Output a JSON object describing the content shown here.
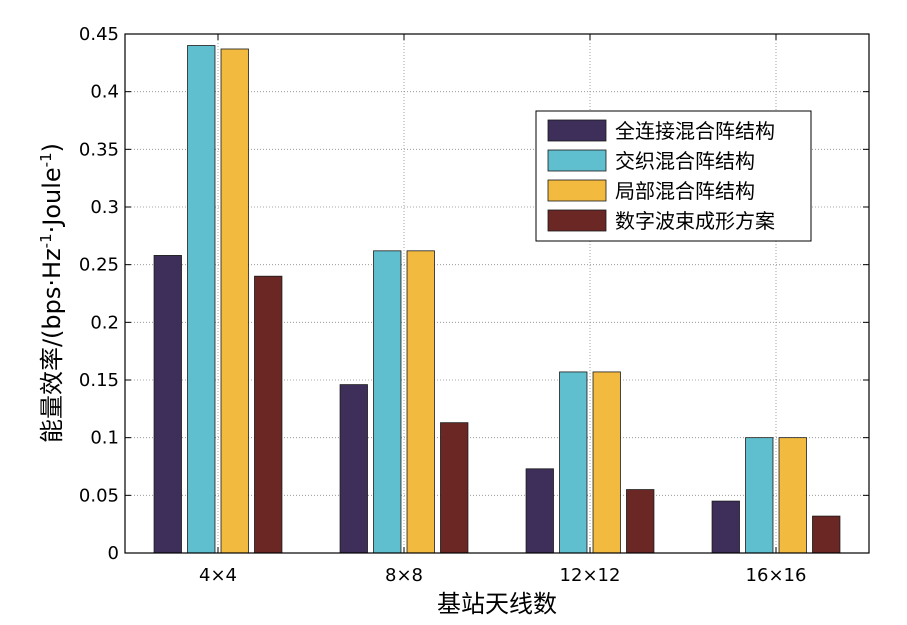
{
  "chart_data": {
    "type": "bar",
    "categories": [
      "4×4",
      "8×8",
      "12×12",
      "16×16"
    ],
    "series": [
      {
        "name": "全连接混合阵结构",
        "color": "#3d2f5a",
        "values": [
          0.258,
          0.146,
          0.073,
          0.045
        ]
      },
      {
        "name": "交织混合阵结构",
        "color": "#5fbfcf",
        "values": [
          0.44,
          0.262,
          0.157,
          0.1
        ]
      },
      {
        "name": "局部混合阵结构",
        "color": "#f2bb3f",
        "values": [
          0.437,
          0.262,
          0.157,
          0.1
        ]
      },
      {
        "name": "数字波束成形方案",
        "color": "#6b2724",
        "values": [
          0.24,
          0.113,
          0.055,
          0.032
        ]
      }
    ],
    "title": "",
    "xlabel": "基站天线数",
    "ylabel": "能量效率/(bps·Hz",
    "ylabel_mid": "·Joule",
    "ylabel_end": ")",
    "ylabel_sup": "-1",
    "ylim": [
      0,
      0.45
    ],
    "yticks": [
      "0",
      "0.05",
      "0.1",
      "0.15",
      "0.2",
      "0.25",
      "0.3",
      "0.35",
      "0.4",
      "0.45"
    ],
    "grid": true,
    "legend_position": "top-right"
  }
}
